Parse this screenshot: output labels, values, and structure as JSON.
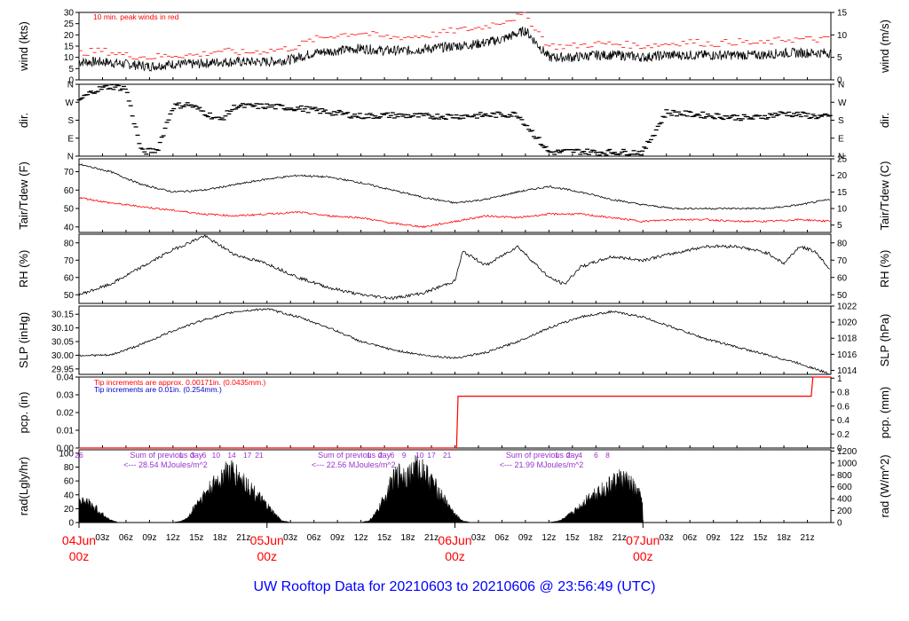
{
  "figure_title": "UW Rooftop Data for 20210603  to  20210606 @ 23:56:49  (UTC)",
  "colors": {
    "series": "#000000",
    "peak": "#ff0000",
    "dew": "#ff0000",
    "annot_blue": "#0000cc",
    "annot_purple": "#9933cc",
    "date_red": "#ff0000",
    "title_blue": "#0000ff"
  },
  "chart_data": [
    {
      "id": "wind",
      "type": "line",
      "ylabel": "wind (kts)",
      "ylabel_right": "wind (m/s)",
      "ylim": [
        0,
        30
      ],
      "yticks": [
        0,
        5,
        10,
        15,
        20,
        25,
        30
      ],
      "ylim_right": [
        0,
        15
      ],
      "yticks_right": [
        0,
        5,
        10,
        15
      ],
      "annotation": "10 min. peak winds in red",
      "series": [
        {
          "role": "mean",
          "color": "#000000",
          "x": [
            0,
            3,
            6,
            9,
            12,
            15,
            18,
            21,
            24,
            27,
            30,
            33,
            36,
            39,
            42,
            45,
            48,
            51,
            54,
            57,
            60,
            63,
            66,
            69,
            72,
            75,
            78,
            81,
            84,
            87,
            90,
            93,
            96
          ],
          "y": [
            8,
            8,
            7,
            6,
            7,
            7,
            8,
            8,
            8,
            9,
            12,
            13,
            14,
            13,
            13,
            14,
            15,
            16,
            18,
            22,
            10,
            10,
            11,
            11,
            10,
            11,
            11,
            11,
            11,
            11,
            12,
            12,
            12
          ]
        },
        {
          "role": "peak",
          "name": "10 min. peak winds",
          "color": "#ff0000",
          "x": [
            0,
            3,
            6,
            9,
            12,
            15,
            18,
            21,
            24,
            27,
            30,
            33,
            36,
            39,
            42,
            45,
            48,
            51,
            54,
            57,
            60,
            63,
            66,
            69,
            72,
            75,
            78,
            81,
            84,
            87,
            90,
            93,
            96
          ],
          "y": [
            12,
            13,
            11,
            10,
            11,
            11,
            13,
            12,
            13,
            14,
            18,
            20,
            21,
            19,
            19,
            20,
            22,
            23,
            26,
            29,
            15,
            15,
            16,
            16,
            15,
            16,
            17,
            16,
            17,
            16,
            18,
            18,
            18
          ]
        }
      ]
    },
    {
      "id": "dir",
      "type": "scatter",
      "ylabel": "dir.",
      "ylabel_right": "dir.",
      "ylim": [
        0,
        360
      ],
      "ytick_values": [
        0,
        90,
        180,
        270,
        360
      ],
      "ytick_labels": [
        "N",
        "E",
        "S",
        "W",
        "N"
      ],
      "series": [
        {
          "name": "direction",
          "color": "#000000",
          "x": [
            0,
            2,
            4,
            6,
            8,
            10,
            12,
            14,
            16,
            18,
            20,
            24,
            28,
            32,
            36,
            40,
            44,
            48,
            52,
            56,
            60,
            61,
            63,
            66,
            70,
            72,
            75,
            78,
            82,
            86,
            90,
            94,
            96
          ],
          "y": [
            280,
            330,
            350,
            340,
            20,
            30,
            250,
            260,
            220,
            180,
            250,
            250,
            240,
            220,
            200,
            205,
            200,
            200,
            205,
            210,
            20,
            20,
            25,
            20,
            20,
            20,
            220,
            210,
            200,
            190,
            215,
            200,
            195
          ]
        }
      ]
    },
    {
      "id": "temp",
      "type": "line",
      "ylabel": "Tair/Tdew (F)",
      "ylabel_right": "Tair/Tdew (C)",
      "ylim": [
        37,
        77
      ],
      "yticks": [
        40,
        50,
        60,
        70
      ],
      "ylim_right": [
        2.78,
        25
      ],
      "yticks_right": [
        5,
        10,
        15,
        20,
        25
      ],
      "series": [
        {
          "name": "Tair",
          "color": "#000000",
          "x": [
            0,
            4,
            8,
            12,
            16,
            20,
            24,
            28,
            32,
            36,
            40,
            44,
            48,
            52,
            56,
            60,
            64,
            68,
            72,
            76,
            80,
            84,
            88,
            92,
            96
          ],
          "y": [
            74,
            70,
            63,
            59,
            60,
            63,
            66,
            68,
            67,
            64,
            60,
            56,
            53,
            55,
            59,
            62,
            59,
            55,
            52,
            50,
            50,
            50,
            50,
            52,
            55
          ]
        },
        {
          "name": "Tdew",
          "color": "#ff0000",
          "x": [
            0,
            4,
            8,
            12,
            16,
            20,
            24,
            28,
            32,
            36,
            40,
            44,
            48,
            52,
            56,
            60,
            64,
            68,
            72,
            76,
            80,
            84,
            88,
            92,
            96
          ],
          "y": [
            56,
            53,
            51,
            49,
            47,
            46,
            47,
            48,
            46,
            45,
            42,
            40,
            43,
            46,
            45,
            47,
            47,
            45,
            43,
            44,
            44,
            43,
            43,
            44,
            43
          ]
        }
      ]
    },
    {
      "id": "rh",
      "type": "line",
      "ylabel": "RH (%)",
      "ylabel_right": "RH (%)",
      "ylim": [
        45,
        85
      ],
      "yticks": [
        50,
        60,
        70,
        80
      ],
      "yticks_right": [
        50,
        60,
        70,
        80
      ],
      "series": [
        {
          "name": "RH",
          "color": "#000000",
          "x": [
            0,
            4,
            8,
            12,
            16,
            20,
            24,
            28,
            32,
            36,
            40,
            44,
            48,
            49,
            52,
            56,
            60,
            62,
            64,
            68,
            72,
            76,
            80,
            84,
            88,
            90,
            92,
            94,
            96
          ],
          "y": [
            50,
            56,
            66,
            76,
            84,
            73,
            68,
            60,
            54,
            50,
            48,
            51,
            58,
            75,
            67,
            78,
            60,
            56,
            66,
            72,
            70,
            74,
            78,
            78,
            74,
            68,
            78,
            75,
            64
          ]
        }
      ]
    },
    {
      "id": "slp",
      "type": "line",
      "ylabel": "SLP (inHg)",
      "ylabel_right": "SLP (hPa)",
      "ylim": [
        29.93,
        30.18
      ],
      "yticks": [
        29.95,
        30.0,
        30.05,
        30.1,
        30.15
      ],
      "ylim_right": [
        1013.5,
        1022.0
      ],
      "yticks_right": [
        1014,
        1016,
        1018,
        1020,
        1022
      ],
      "series": [
        {
          "name": "SLP",
          "color": "#000000",
          "x": [
            0,
            4,
            8,
            12,
            16,
            20,
            24,
            28,
            32,
            36,
            40,
            44,
            48,
            52,
            56,
            60,
            64,
            68,
            72,
            76,
            80,
            84,
            88,
            92,
            96
          ],
          "y": [
            30.0,
            30.0,
            30.04,
            30.09,
            30.13,
            30.16,
            30.17,
            30.14,
            30.1,
            30.05,
            30.02,
            30.0,
            29.99,
            30.01,
            30.05,
            30.1,
            30.14,
            30.16,
            30.14,
            30.1,
            30.06,
            30.03,
            30.0,
            29.97,
            29.93
          ]
        }
      ]
    },
    {
      "id": "pcp",
      "type": "line",
      "ylabel": "pcp. (in)",
      "ylabel_right": "pcp. (mm)",
      "ylim": [
        0,
        0.04
      ],
      "yticks": [
        0.0,
        0.01,
        0.02,
        0.03,
        0.04
      ],
      "ylim_right": [
        0,
        1.016
      ],
      "yticks_right": [
        0,
        0.2,
        0.4,
        0.6,
        0.8,
        1
      ],
      "annotations": [
        {
          "text": "Tip increments are approx. 0.00171in. (0.0435mm.)",
          "color": "#ff0000"
        },
        {
          "text": "Tip increments are 0.01in. (0.254mm.)",
          "color": "#0000cc"
        }
      ],
      "series": [
        {
          "name": "precip",
          "color": "#ff0000",
          "x": [
            0,
            48.2,
            48.4,
            93.5,
            93.7,
            96
          ],
          "y": [
            0,
            0,
            0.0292,
            0.0292,
            0.04,
            0.04
          ]
        }
      ]
    },
    {
      "id": "rad",
      "type": "area",
      "ylabel": "rad(Lgly/hr)",
      "ylabel_right": "rad (W/m^2)",
      "ylim": [
        0,
        105
      ],
      "yticks": [
        0,
        20,
        40,
        60,
        80,
        100
      ],
      "ylim_right": [
        0,
        1221
      ],
      "yticks_right": [
        0,
        200,
        400,
        600,
        800,
        1000,
        1200
      ],
      "day_annotations": [
        {
          "title": "Sum of previous day",
          "value": "<--- 28.54 MJoules/m^2"
        },
        {
          "title": "Sum of previous day",
          "value": "<--- 22.56 MJoules/m^2"
        },
        {
          "title": "Sum of previous day",
          "value": "<--- 21.99 MJoules/m^2"
        }
      ],
      "hour_marks": [
        {
          "x": 0,
          "label": "26"
        },
        {
          "x": 13,
          "label": "1"
        },
        {
          "x": 14.5,
          "label": "3"
        },
        {
          "x": 16,
          "label": "6"
        },
        {
          "x": 17.5,
          "label": "10"
        },
        {
          "x": 19.5,
          "label": "14"
        },
        {
          "x": 21.5,
          "label": "17"
        },
        {
          "x": 23,
          "label": "21"
        },
        {
          "x": 37,
          "label": "1"
        },
        {
          "x": 38.5,
          "label": "2"
        },
        {
          "x": 40,
          "label": "6"
        },
        {
          "x": 41.5,
          "label": "9"
        },
        {
          "x": 43.5,
          "label": "10"
        },
        {
          "x": 45,
          "label": "17"
        },
        {
          "x": 47,
          "label": "21"
        },
        {
          "x": 61,
          "label": "1"
        },
        {
          "x": 62.5,
          "label": "2"
        },
        {
          "x": 64,
          "label": "4"
        },
        {
          "x": 66,
          "label": "6"
        },
        {
          "x": 67.5,
          "label": "8"
        }
      ],
      "series": [
        {
          "name": "radiation",
          "color": "#000000",
          "x": [
            0,
            1,
            2,
            3,
            4,
            5,
            12,
            13,
            14,
            15,
            16,
            17,
            18,
            19,
            20,
            21,
            22,
            23,
            24,
            25,
            26,
            27,
            36,
            37,
            38,
            39,
            40,
            41,
            42,
            43,
            44,
            45,
            46,
            47,
            48,
            49,
            50,
            60,
            61,
            62,
            63,
            64,
            65,
            66,
            67,
            68,
            69,
            70,
            71,
            72
          ],
          "y": [
            40,
            38,
            28,
            15,
            5,
            0,
            0,
            2,
            10,
            35,
            50,
            65,
            80,
            95,
            88,
            75,
            60,
            45,
            30,
            15,
            3,
            0,
            0,
            3,
            18,
            45,
            75,
            90,
            85,
            100,
            95,
            75,
            55,
            35,
            15,
            3,
            0,
            0,
            2,
            8,
            18,
            30,
            45,
            55,
            60,
            70,
            80,
            75,
            60,
            40
          ]
        }
      ]
    }
  ],
  "x_axis": {
    "range_hours": [
      0,
      96
    ],
    "tick_hours": [
      3,
      6,
      9,
      12,
      15,
      18,
      21,
      27,
      30,
      33,
      36,
      39,
      42,
      45,
      51,
      54,
      57,
      60,
      63,
      66,
      69,
      75,
      78,
      81,
      84,
      87,
      90,
      93
    ],
    "tick_labels": [
      "03z",
      "06z",
      "09z",
      "12z",
      "15z",
      "18z",
      "21z",
      "03z",
      "06z",
      "09z",
      "12z",
      "15z",
      "18z",
      "21z",
      "03z",
      "06z",
      "09z",
      "12z",
      "15z",
      "18z",
      "21z",
      "03z",
      "06z",
      "09z",
      "12z",
      "15z",
      "18z",
      "21z"
    ],
    "date_labels": [
      {
        "hour": 0,
        "date": "04Jun",
        "time": "00z"
      },
      {
        "hour": 24,
        "date": "05Jun",
        "time": "00z"
      },
      {
        "hour": 48,
        "date": "06Jun",
        "time": "00z"
      },
      {
        "hour": 72,
        "date": "07Jun",
        "time": "00z"
      }
    ]
  }
}
